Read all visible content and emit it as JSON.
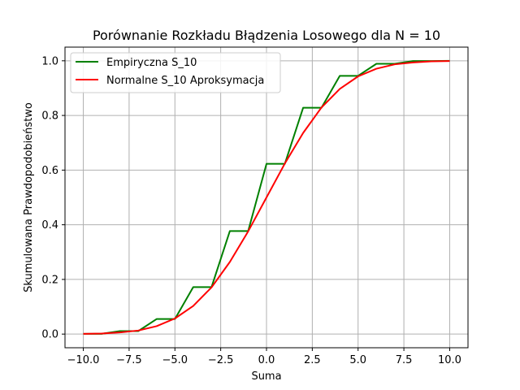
{
  "chart_data": {
    "type": "line",
    "title": "Porównanie Rozkładu Błądzenia Losowego dla N = 10",
    "xlabel": "Suma",
    "ylabel": "Skumulowana Prawdopodobieństwo",
    "xlim": [
      -11,
      11
    ],
    "ylim": [
      -0.05,
      1.05
    ],
    "xticks": [
      -10,
      -7.5,
      -5,
      -2.5,
      0,
      2.5,
      5,
      7.5,
      10
    ],
    "xtick_labels": [
      "−10.0",
      "−7.5",
      "−5.0",
      "−2.5",
      "0.0",
      "2.5",
      "5.0",
      "7.5",
      "10.0"
    ],
    "yticks": [
      0,
      0.2,
      0.4,
      0.6,
      0.8,
      1.0
    ],
    "ytick_labels": [
      "0.0",
      "0.2",
      "0.4",
      "0.6",
      "0.8",
      "1.0"
    ],
    "grid": true,
    "legend_position": "top-left",
    "series": [
      {
        "name": "Empiryczna S_10",
        "color": "#008000",
        "x": [
          -10,
          -9,
          -8,
          -7,
          -6,
          -5,
          -4,
          -3,
          -2,
          -1,
          0,
          1,
          2,
          3,
          4,
          5,
          6,
          7,
          8,
          9,
          10
        ],
        "y": [
          0.001,
          0.001,
          0.011,
          0.011,
          0.055,
          0.055,
          0.172,
          0.172,
          0.377,
          0.377,
          0.623,
          0.623,
          0.828,
          0.828,
          0.945,
          0.945,
          0.989,
          0.989,
          0.999,
          0.999,
          1.0
        ]
      },
      {
        "name": "Normalne S_10 Aproksymacja",
        "color": "#ff0000",
        "x": [
          -10,
          -9,
          -8,
          -7,
          -6,
          -5,
          -4,
          -3,
          -2,
          -1,
          0,
          1,
          2,
          3,
          4,
          5,
          6,
          7,
          8,
          9,
          10
        ],
        "y": [
          0.001,
          0.002,
          0.006,
          0.013,
          0.029,
          0.057,
          0.103,
          0.171,
          0.264,
          0.376,
          0.5,
          0.624,
          0.736,
          0.829,
          0.897,
          0.943,
          0.971,
          0.987,
          0.994,
          0.998,
          0.999
        ]
      }
    ]
  }
}
